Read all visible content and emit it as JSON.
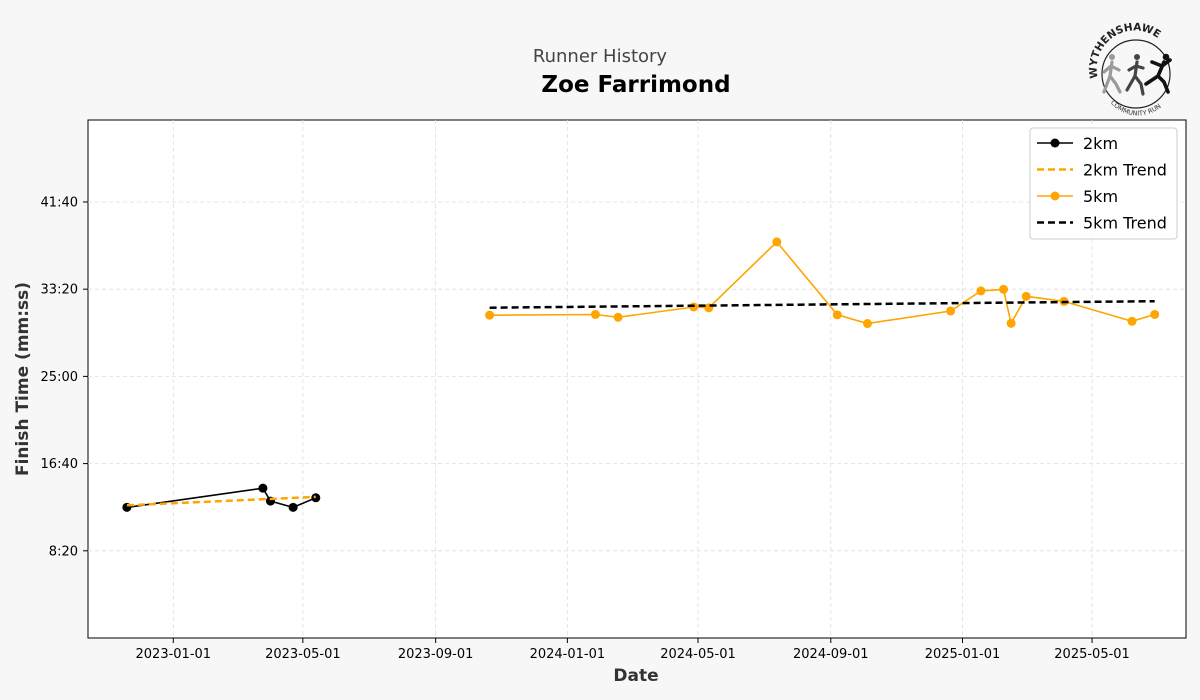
{
  "header": {
    "subtitle": "Runner History",
    "title": "Zoe Farrimond"
  },
  "logo": {
    "top_text": "WYTHENSHAWE",
    "bottom_text": "COMMUNITY RUN"
  },
  "chart_data": {
    "type": "line",
    "xlabel": "Date",
    "ylabel": "Finish Time (mm:ss)",
    "x_ticks": [
      "2023-01-01",
      "2023-05-01",
      "2023-09-01",
      "2024-01-01",
      "2024-05-01",
      "2024-09-01",
      "2025-01-01",
      "2025-05-01"
    ],
    "y_ticks": [
      "8:20",
      "16:40",
      "25:00",
      "33:20",
      "41:40"
    ],
    "xlim": [
      "2022-10-14",
      "2025-07-27"
    ],
    "ylim": [
      "0:00",
      "49:30"
    ],
    "grid": true,
    "legend_position": "top-right",
    "series": [
      {
        "name": "2km",
        "kind": "line-markers",
        "color": "#000000",
        "points": [
          [
            "2022-11-19",
            "12:29"
          ],
          [
            "2023-03-25",
            "14:19"
          ],
          [
            "2023-04-01",
            "13:05"
          ],
          [
            "2023-04-22",
            "12:29"
          ],
          [
            "2023-05-13",
            "13:24"
          ]
        ]
      },
      {
        "name": "2km Trend",
        "kind": "dashed",
        "color": "#FFA500",
        "points": [
          [
            "2022-11-19",
            "12:41"
          ],
          [
            "2023-05-13",
            "13:29"
          ]
        ]
      },
      {
        "name": "5km",
        "kind": "line-markers",
        "color": "#FFA500",
        "points": [
          [
            "2023-10-21",
            "30:51"
          ],
          [
            "2024-01-27",
            "30:55"
          ],
          [
            "2024-02-17",
            "30:39"
          ],
          [
            "2024-04-27",
            "31:38"
          ],
          [
            "2024-05-11",
            "31:33"
          ],
          [
            "2024-07-13",
            "37:51"
          ],
          [
            "2024-09-07",
            "30:53"
          ],
          [
            "2024-10-05",
            "30:03"
          ],
          [
            "2024-12-21",
            "31:15"
          ],
          [
            "2025-01-18",
            "33:10"
          ],
          [
            "2025-02-08",
            "33:19"
          ],
          [
            "2025-02-15",
            "30:04"
          ],
          [
            "2025-03-01",
            "32:39"
          ],
          [
            "2025-04-05",
            "32:10"
          ],
          [
            "2025-06-07",
            "30:16"
          ],
          [
            "2025-06-28",
            "30:55"
          ]
        ]
      },
      {
        "name": "5km Trend",
        "kind": "dashed",
        "color": "#000000",
        "points": [
          [
            "2023-10-21",
            "31:34"
          ],
          [
            "2025-06-28",
            "32:11"
          ]
        ]
      }
    ]
  }
}
